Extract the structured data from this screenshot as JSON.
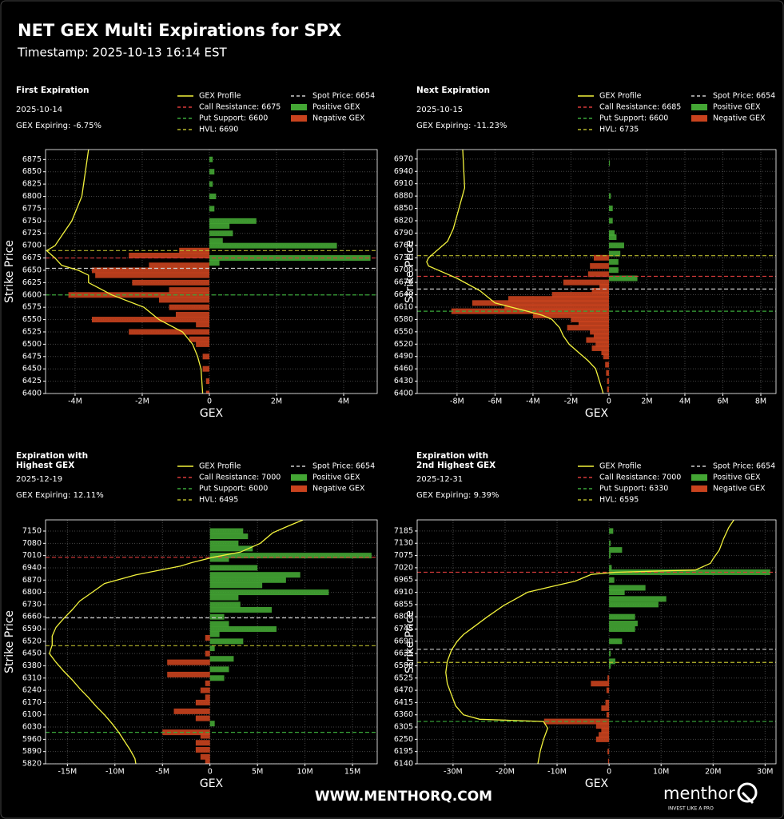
{
  "header": {
    "title": "NET GEX Multi Expirations for SPX",
    "subtitle": "Timestamp: 2025-10-13 16:14 EST"
  },
  "footer": {
    "url": "WWW.MENTHORQ.COM",
    "brand": "menthor",
    "tagline": "INVEST LIKE A PRO"
  },
  "chart_data": [
    {
      "type": "bar",
      "title": [
        "First Expiration"
      ],
      "date": "2025-10-14",
      "gex_expiring": "GEX Expiring: -6.75%",
      "xlabel": "GEX",
      "ylabel": "Strike Price",
      "grid": true,
      "xlim": [
        -4880000,
        5000000
      ],
      "xticks": [
        {
          "value": -4000000,
          "label": "-4M"
        },
        {
          "value": -2000000,
          "label": "-2M"
        },
        0,
        {
          "value": 2000000,
          "label": "2M"
        },
        {
          "value": 4000000,
          "label": "4M"
        }
      ],
      "ylim": [
        6400,
        6895
      ],
      "yticks": [
        6400,
        6425,
        6450,
        6475,
        6500,
        6525,
        6550,
        6575,
        6600,
        6625,
        6650,
        6675,
        6700,
        6725,
        6750,
        6775,
        6800,
        6825,
        6850,
        6875
      ],
      "strikes": [
        6875,
        6850,
        6825,
        6800,
        6775,
        6750,
        6740,
        6725,
        6710,
        6700,
        6690,
        6680,
        6675,
        6665,
        6660,
        6650,
        6640,
        6625,
        6610,
        6600,
        6590,
        6575,
        6560,
        6550,
        6540,
        6525,
        6510,
        6500,
        6475,
        6450,
        6425,
        6400
      ],
      "series": [
        {
          "name": "Positive GEX",
          "color": "#44a634",
          "values": [
            100000,
            150000,
            100000,
            200000,
            150000,
            1400000,
            600000,
            700000,
            400000,
            3800000,
            null,
            null,
            4800000,
            300000,
            null,
            null,
            null,
            null,
            null,
            null,
            null,
            null,
            null,
            null,
            null,
            null,
            null,
            null,
            null,
            null,
            null,
            null
          ]
        },
        {
          "name": "Negative GEX",
          "color": "#c9431e",
          "values": [
            null,
            null,
            null,
            null,
            null,
            null,
            null,
            null,
            null,
            null,
            -900000,
            -2400000,
            null,
            null,
            -1800000,
            -3500000,
            -3400000,
            -2300000,
            -1200000,
            -4200000,
            -1500000,
            -1200000,
            -1000000,
            -3500000,
            -400000,
            -2400000,
            -600000,
            -400000,
            -200000,
            -200000,
            -100000,
            -100000
          ]
        }
      ],
      "profile": {
        "name": "GEX Profile",
        "color": "#f2f23c",
        "strikes": [
          6895,
          6800,
          6750,
          6720,
          6700,
          6690,
          6675,
          6660,
          6650,
          6640,
          6625,
          6600,
          6575,
          6550,
          6525,
          6500,
          6475,
          6450,
          6400
        ],
        "values": [
          -3600000,
          -3800000,
          -4100000,
          -4400000,
          -4600000,
          -4850000,
          -4600000,
          -4400000,
          -3900000,
          -3600000,
          -3600000,
          -2900000,
          -1950000,
          -1500000,
          -800000,
          -500000,
          -350000,
          -250000,
          -200000
        ]
      },
      "levels": [
        {
          "label": "Call Resistance: 6675",
          "value": 6675,
          "color": "#d93b3b"
        },
        {
          "label": "Put Support: 6600",
          "value": 6600,
          "color": "#3aa83a"
        },
        {
          "label": "HVL: 6690",
          "value": 6690,
          "color": "#b8b82c"
        },
        {
          "label": "Spot Price: 6654",
          "value": 6654,
          "color": "#cccccc"
        }
      ]
    },
    {
      "type": "bar",
      "title": [
        "Next Expiration"
      ],
      "date": "2025-10-15",
      "gex_expiring": "GEX Expiring: -11.23%",
      "xlabel": "GEX",
      "ylabel": "Strike Price",
      "grid": true,
      "xlim": [
        -10100000,
        8800000
      ],
      "xticks": [
        {
          "value": -8000000,
          "label": "-8M"
        },
        {
          "value": -6000000,
          "label": "-6M"
        },
        {
          "value": -4000000,
          "label": "-4M"
        },
        {
          "value": -2000000,
          "label": "-2M"
        },
        0,
        {
          "value": 2000000,
          "label": "2M"
        },
        {
          "value": 4000000,
          "label": "4M"
        },
        {
          "value": 6000000,
          "label": "6M"
        },
        {
          "value": 8000000,
          "label": "8M"
        }
      ],
      "ylim": [
        6400,
        6993
      ],
      "yticks": [
        6400,
        6430,
        6460,
        6490,
        6520,
        6550,
        6580,
        6610,
        6640,
        6670,
        6700,
        6730,
        6760,
        6790,
        6820,
        6850,
        6880,
        6910,
        6940,
        6970
      ],
      "strikes": [
        6960,
        6880,
        6850,
        6820,
        6790,
        6780,
        6760,
        6740,
        6730,
        6720,
        6710,
        6700,
        6690,
        6680,
        6670,
        6660,
        6650,
        6640,
        6630,
        6620,
        6610,
        6600,
        6590,
        6580,
        6570,
        6560,
        6550,
        6540,
        6530,
        6520,
        6510,
        6500,
        6490,
        6470,
        6450,
        6430,
        6410
      ],
      "series": [
        {
          "name": "Positive GEX",
          "color": "#44a634",
          "values": [
            50000,
            100000,
            200000,
            200000,
            300000,
            400000,
            800000,
            600000,
            null,
            500000,
            null,
            500000,
            null,
            1500000,
            null,
            null,
            null,
            null,
            null,
            null,
            null,
            null,
            null,
            null,
            null,
            null,
            null,
            null,
            null,
            null,
            null,
            null,
            null,
            null,
            null,
            null,
            null
          ]
        },
        {
          "name": "Negative GEX",
          "color": "#c9431e",
          "values": [
            null,
            null,
            null,
            null,
            null,
            null,
            null,
            null,
            -800000,
            null,
            -1000000,
            null,
            -1100000,
            null,
            -2400000,
            -500000,
            -900000,
            -3000000,
            -5300000,
            -7200000,
            -5500000,
            -8300000,
            -4000000,
            -2000000,
            -1600000,
            -2200000,
            -1000000,
            -800000,
            -1200000,
            -700000,
            -900000,
            -400000,
            -300000,
            -200000,
            -150000,
            -100000,
            -100000
          ]
        }
      ],
      "profile": {
        "name": "GEX Profile",
        "color": "#f2f23c",
        "strikes": [
          6993,
          6900,
          6850,
          6800,
          6770,
          6750,
          6730,
          6720,
          6710,
          6700,
          6680,
          6650,
          6620,
          6600,
          6590,
          6580,
          6560,
          6540,
          6520,
          6500,
          6480,
          6460,
          6430,
          6400
        ],
        "values": [
          -7700000,
          -7600000,
          -7900000,
          -8200000,
          -8500000,
          -9000000,
          -9500000,
          -9600000,
          -9500000,
          -9000000,
          -8000000,
          -6800000,
          -6000000,
          -4300000,
          -3500000,
          -3000000,
          -2600000,
          -2400000,
          -2100000,
          -1600000,
          -1100000,
          -700000,
          -500000,
          -300000
        ]
      },
      "levels": [
        {
          "label": "Call Resistance: 6685",
          "value": 6685,
          "color": "#d93b3b"
        },
        {
          "label": "Put Support: 6600",
          "value": 6600,
          "color": "#3aa83a"
        },
        {
          "label": "HVL: 6735",
          "value": 6735,
          "color": "#b8b82c"
        },
        {
          "label": "Spot Price: 6654",
          "value": 6654,
          "color": "#cccccc"
        }
      ]
    },
    {
      "type": "bar",
      "title": [
        "Expiration with",
        "Highest GEX"
      ],
      "date": "2025-12-19",
      "gex_expiring": "GEX Expiring: 12.11%",
      "xlabel": "GEX",
      "ylabel": "Strike Price",
      "grid": true,
      "xlim": [
        -17300000,
        17600000
      ],
      "xticks": [
        {
          "value": -15000000,
          "label": "-15M"
        },
        {
          "value": -10000000,
          "label": "-10M"
        },
        {
          "value": -5000000,
          "label": "-5M"
        },
        0,
        {
          "value": 5000000,
          "label": "5M"
        },
        {
          "value": 10000000,
          "label": "10M"
        },
        {
          "value": 15000000,
          "label": "15M"
        }
      ],
      "ylim": [
        5820,
        7214
      ],
      "yticks": [
        5820,
        5890,
        5960,
        6030,
        6100,
        6170,
        6240,
        6310,
        6380,
        6450,
        6520,
        6590,
        6660,
        6730,
        6800,
        6870,
        6940,
        7010,
        7080,
        7150
      ],
      "strikes": [
        7150,
        7120,
        7080,
        7050,
        7010,
        6990,
        6940,
        6900,
        6870,
        6840,
        6800,
        6770,
        6730,
        6700,
        6660,
        6620,
        6590,
        6560,
        6540,
        6520,
        6480,
        6450,
        6420,
        6400,
        6360,
        6330,
        6310,
        6280,
        6240,
        6200,
        6170,
        6120,
        6080,
        6050,
        6000,
        5980,
        5940,
        5900,
        5860,
        5830
      ],
      "series": [
        {
          "name": "Positive GEX",
          "color": "#44a634",
          "values": [
            3500000,
            4000000,
            3000000,
            4500000,
            17000000,
            2000000,
            5000000,
            9500000,
            8000000,
            5500000,
            12500000,
            3000000,
            3200000,
            6500000,
            1500000,
            2000000,
            7000000,
            1000000,
            null,
            3500000,
            500000,
            null,
            2500000,
            null,
            2000000,
            null,
            1500000,
            null,
            null,
            null,
            null,
            null,
            null,
            500000,
            null,
            null,
            null,
            null,
            null,
            null
          ]
        },
        {
          "name": "Negative GEX",
          "color": "#c9431e",
          "values": [
            null,
            null,
            null,
            null,
            null,
            null,
            null,
            null,
            null,
            null,
            null,
            null,
            null,
            null,
            null,
            null,
            null,
            null,
            -500000,
            null,
            null,
            -500000,
            null,
            -4500000,
            null,
            -4500000,
            null,
            -500000,
            -1000000,
            -500000,
            -1500000,
            -3800000,
            -1500000,
            null,
            -5000000,
            -1000000,
            -1500000,
            -1500000,
            -1000000,
            -500000
          ]
        }
      ],
      "profile": {
        "name": "GEX Profile",
        "color": "#f2f23c",
        "strikes": [
          7214,
          7180,
          7140,
          7080,
          7030,
          7000,
          6970,
          6950,
          6900,
          6850,
          6800,
          6750,
          6700,
          6650,
          6600,
          6550,
          6500,
          6450,
          6400,
          6350,
          6300,
          6250,
          6200,
          6150,
          6100,
          6050,
          6000,
          5950,
          5900,
          5850,
          5820
        ],
        "values": [
          9800000,
          8300000,
          6600000,
          5300000,
          3200000,
          300000,
          -1900000,
          -3100000,
          -7800000,
          -11100000,
          -12400000,
          -13700000,
          -14500000,
          -15400000,
          -16200000,
          -16600000,
          -16600000,
          -16900000,
          -16200000,
          -15400000,
          -14500000,
          -13700000,
          -12800000,
          -12000000,
          -11100000,
          -10300000,
          -9600000,
          -9000000,
          -8400000,
          -7900000,
          -7800000
        ]
      },
      "levels": [
        {
          "label": "Call Resistance: 7000",
          "value": 7000,
          "color": "#d93b3b"
        },
        {
          "label": "Put Support: 6000",
          "value": 6000,
          "color": "#3aa83a"
        },
        {
          "label": "HVL: 6495",
          "value": 6495,
          "color": "#b8b82c"
        },
        {
          "label": "Spot Price: 6654",
          "value": 6654,
          "color": "#cccccc"
        }
      ]
    },
    {
      "type": "bar",
      "title": [
        "Expiration with",
        "2nd Highest GEX"
      ],
      "date": "2025-12-31",
      "gex_expiring": "GEX Expiring: 9.39%",
      "xlabel": "GEX",
      "ylabel": "Strike Price",
      "grid": true,
      "xlim": [
        -36900000,
        32100000
      ],
      "xticks": [
        {
          "value": -30000000,
          "label": "-30M"
        },
        {
          "value": -20000000,
          "label": "-20M"
        },
        {
          "value": -10000000,
          "label": "-10M"
        },
        0,
        {
          "value": 10000000,
          "label": "10M"
        },
        {
          "value": 20000000,
          "label": "20M"
        },
        {
          "value": 30000000,
          "label": "30M"
        }
      ],
      "ylim": [
        6140,
        7235
      ],
      "yticks": [
        6140,
        6195,
        6250,
        6305,
        6360,
        6415,
        6470,
        6525,
        6580,
        6635,
        6690,
        6745,
        6800,
        6855,
        6910,
        6965,
        7020,
        7075,
        7130,
        7185
      ],
      "strikes": [
        7185,
        7130,
        7100,
        7075,
        7020,
        7000,
        6965,
        6930,
        6910,
        6880,
        6855,
        6800,
        6770,
        6745,
        6690,
        6635,
        6600,
        6580,
        6525,
        6500,
        6470,
        6415,
        6390,
        6360,
        6330,
        6310,
        6290,
        6270,
        6250,
        6195,
        6150
      ],
      "series": [
        {
          "name": "Positive GEX",
          "color": "#44a634",
          "values": [
            800000,
            300000,
            2500000,
            300000,
            500000,
            31000000,
            1000000,
            7000000,
            3000000,
            11000000,
            9500000,
            5000000,
            5500000,
            5000000,
            2500000,
            300000,
            1200000,
            300000,
            null,
            null,
            null,
            null,
            null,
            null,
            null,
            null,
            null,
            null,
            null,
            null,
            null
          ]
        },
        {
          "name": "Negative GEX",
          "color": "#c9431e",
          "values": [
            null,
            null,
            null,
            null,
            null,
            null,
            null,
            null,
            null,
            null,
            null,
            null,
            null,
            null,
            null,
            null,
            null,
            null,
            -300000,
            -3500000,
            -500000,
            -700000,
            -1500000,
            -500000,
            -12500000,
            -2500000,
            -1500000,
            -2000000,
            -2500000,
            -300000,
            -200000
          ]
        }
      ],
      "profile": {
        "name": "GEX Profile",
        "color": "#f2f23c",
        "strikes": [
          7235,
          7200,
          7150,
          7100,
          7060,
          7040,
          7010,
          7000,
          6990,
          6960,
          6940,
          6910,
          6880,
          6850,
          6800,
          6760,
          6720,
          6690,
          6650,
          6600,
          6550,
          6500,
          6450,
          6400,
          6360,
          6340,
          6330,
          6300,
          6250,
          6200,
          6140
        ],
        "values": [
          24000000,
          23000000,
          22000000,
          21200000,
          20000000,
          19500000,
          16600000,
          1200000,
          -3400000,
          -6500000,
          -10300000,
          -15700000,
          -18000000,
          -20300000,
          -23400000,
          -25700000,
          -28000000,
          -29200000,
          -30300000,
          -31100000,
          -31400000,
          -31100000,
          -30300000,
          -29500000,
          -28000000,
          -24900000,
          -12600000,
          -11800000,
          -12600000,
          -13200000,
          -13700000
        ]
      },
      "levels": [
        {
          "label": "Call Resistance: 7000",
          "value": 7000,
          "color": "#d93b3b"
        },
        {
          "label": "Put Support: 6330",
          "value": 6330,
          "color": "#3aa83a"
        },
        {
          "label": "HVL: 6595",
          "value": 6595,
          "color": "#b8b82c"
        },
        {
          "label": "Spot Price: 6654",
          "value": 6654,
          "color": "#cccccc"
        }
      ]
    }
  ]
}
